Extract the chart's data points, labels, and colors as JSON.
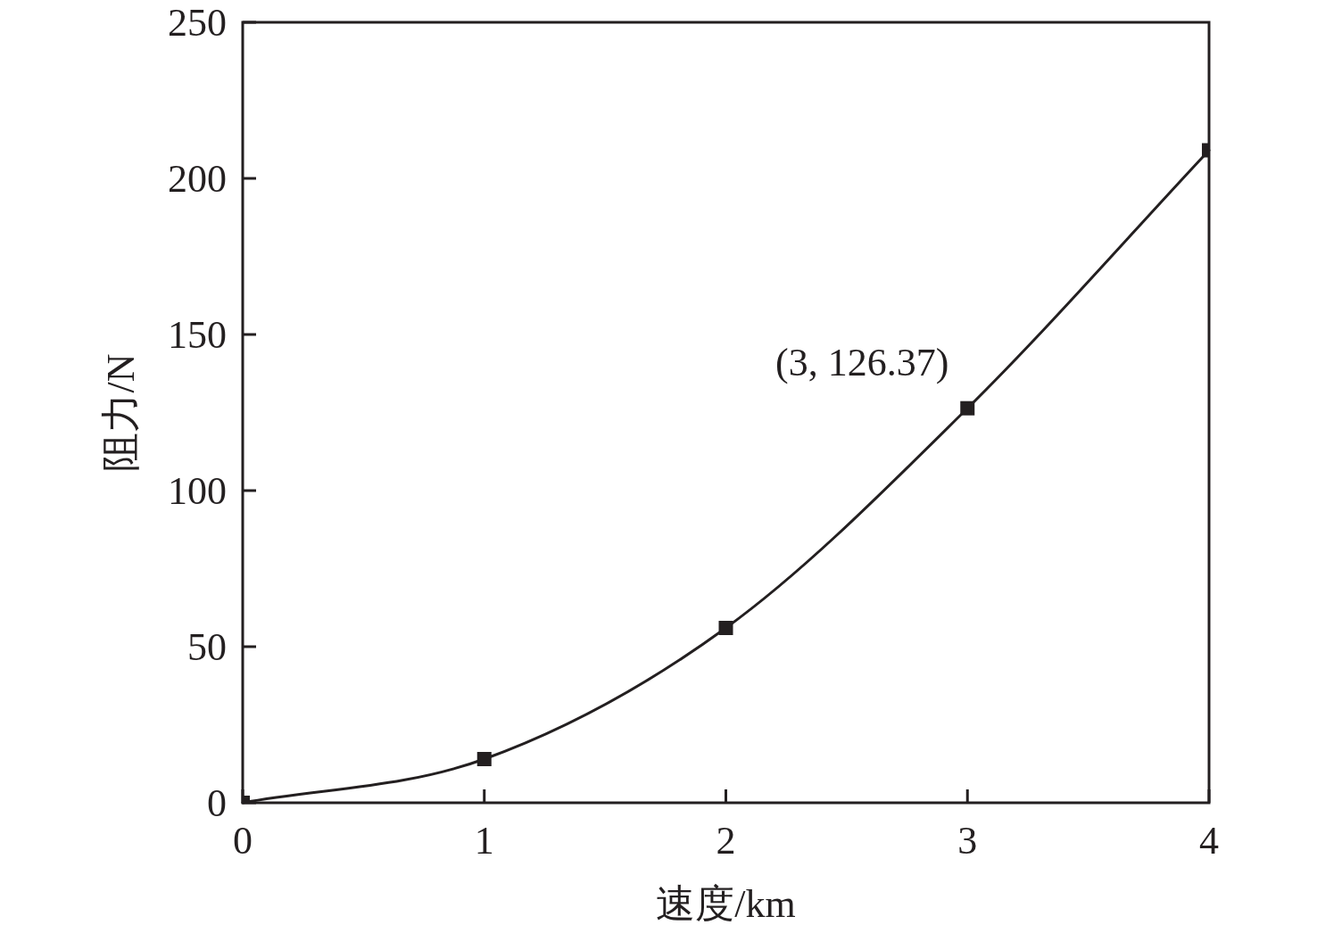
{
  "chart_data": {
    "type": "line",
    "xlabel": "速度/km",
    "ylabel": "阻力/N",
    "x": [
      0,
      1,
      2,
      3,
      4
    ],
    "series": [
      {
        "color": "#231f20",
        "values": [
          0,
          14,
          56,
          126.37,
          209
        ]
      }
    ],
    "xlim": [
      0,
      4
    ],
    "ylim": [
      0,
      250
    ],
    "xticks": [
      0,
      1,
      2,
      3,
      4
    ],
    "yticks": [
      0,
      50,
      100,
      150,
      200,
      250
    ],
    "marker": "square",
    "annotations": [
      {
        "text": "(3, 126.37)",
        "x": 3,
        "y": 126.37
      }
    ]
  }
}
